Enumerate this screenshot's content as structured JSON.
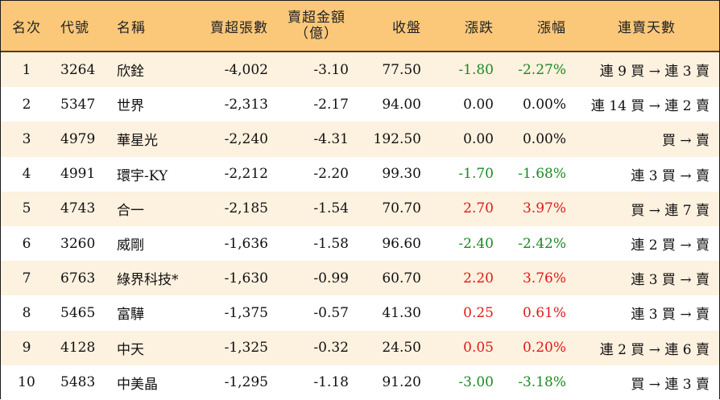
{
  "headers": {
    "rank": "名次",
    "code": "代號",
    "name": "名稱",
    "net_sell_lots": "賣超張數",
    "net_sell_amount_line1": "賣超金額",
    "net_sell_amount_line2": "（億）",
    "close": "收盤",
    "change": "漲跌",
    "pct": "漲幅",
    "streak": "連賣天數"
  },
  "colors": {
    "header_bg": "#fbc87a",
    "stripe_bg": "#fdf1df",
    "up": "#e0191b",
    "down": "#1b8a23"
  },
  "rows": [
    {
      "rank": "1",
      "code": "3264",
      "name": "欣銓",
      "lots": "-4,002",
      "amount": "-3.10",
      "close": "77.50",
      "change": "-1.80",
      "pct": "-2.27%",
      "streak": "連 9 買 → 連 3 賣",
      "dir": "down"
    },
    {
      "rank": "2",
      "code": "5347",
      "name": "世界",
      "lots": "-2,313",
      "amount": "-2.17",
      "close": "94.00",
      "change": "0.00",
      "pct": "0.00%",
      "streak": "連 14 買 → 連 2 賣",
      "dir": "flat"
    },
    {
      "rank": "3",
      "code": "4979",
      "name": "華星光",
      "lots": "-2,240",
      "amount": "-4.31",
      "close": "192.50",
      "change": "0.00",
      "pct": "0.00%",
      "streak": "買 → 賣",
      "dir": "flat"
    },
    {
      "rank": "4",
      "code": "4991",
      "name": "環宇-KY",
      "lots": "-2,212",
      "amount": "-2.20",
      "close": "99.30",
      "change": "-1.70",
      "pct": "-1.68%",
      "streak": "連 3 買 → 賣",
      "dir": "down"
    },
    {
      "rank": "5",
      "code": "4743",
      "name": "合一",
      "lots": "-2,185",
      "amount": "-1.54",
      "close": "70.70",
      "change": "2.70",
      "pct": "3.97%",
      "streak": "買 → 連 7 賣",
      "dir": "up"
    },
    {
      "rank": "6",
      "code": "3260",
      "name": "威剛",
      "lots": "-1,636",
      "amount": "-1.58",
      "close": "96.60",
      "change": "-2.40",
      "pct": "-2.42%",
      "streak": "連 2 買 → 賣",
      "dir": "down"
    },
    {
      "rank": "7",
      "code": "6763",
      "name": "綠界科技*",
      "lots": "-1,630",
      "amount": "-0.99",
      "close": "60.70",
      "change": "2.20",
      "pct": "3.76%",
      "streak": "連 3 買 → 賣",
      "dir": "up"
    },
    {
      "rank": "8",
      "code": "5465",
      "name": "富驊",
      "lots": "-1,375",
      "amount": "-0.57",
      "close": "41.30",
      "change": "0.25",
      "pct": "0.61%",
      "streak": "連 3 買 → 賣",
      "dir": "up"
    },
    {
      "rank": "9",
      "code": "4128",
      "name": "中天",
      "lots": "-1,325",
      "amount": "-0.32",
      "close": "24.50",
      "change": "0.05",
      "pct": "0.20%",
      "streak": "連 2 買 → 連 6 賣",
      "dir": "up"
    },
    {
      "rank": "10",
      "code": "5483",
      "name": "中美晶",
      "lots": "-1,295",
      "amount": "-1.18",
      "close": "91.20",
      "change": "-3.00",
      "pct": "-3.18%",
      "streak": "買 → 連 3 賣",
      "dir": "down"
    }
  ]
}
